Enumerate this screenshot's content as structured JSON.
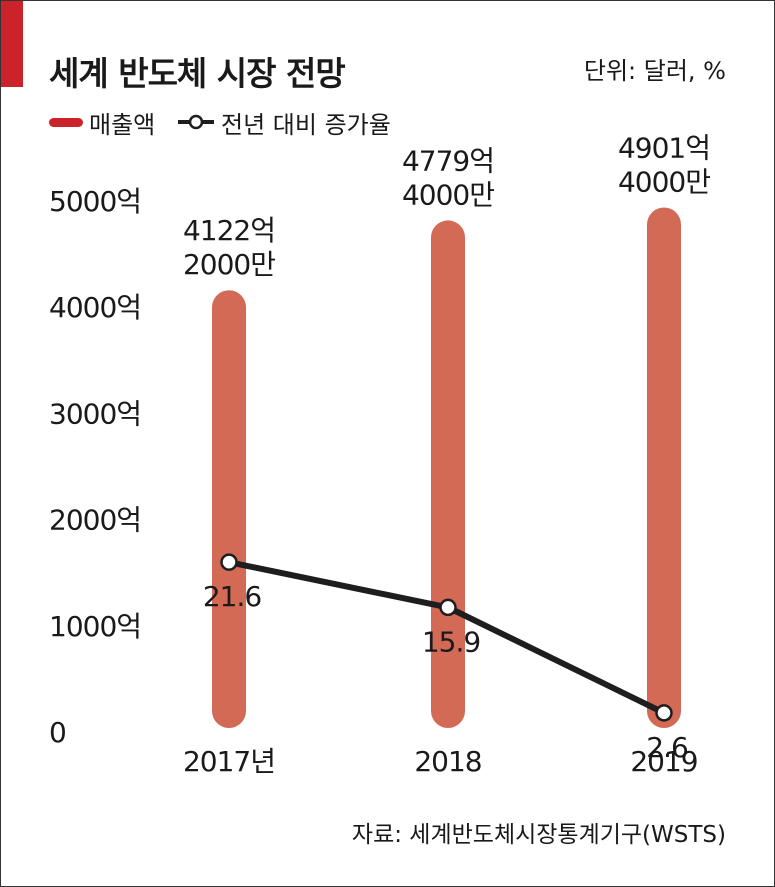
{
  "title": "세계 반도체 시장 전망",
  "unit": "단위: 달러, %",
  "legend": {
    "bar_label": "매출액",
    "line_label": "전년 대비 증가율"
  },
  "source": "자료:  세계반도체시장통계기구(WSTS)",
  "colors": {
    "accent": "#cc2229",
    "bar": "#d36a55",
    "line": "#1e1e1e",
    "text": "#1a1a1a"
  },
  "chart_data": {
    "type": "bar",
    "categories": [
      "2017년",
      "2018",
      "2019"
    ],
    "y_ticks": [
      "0",
      "1000억",
      "2000억",
      "3000억",
      "4000억",
      "5000억"
    ],
    "ylim": [
      0,
      5000
    ],
    "series": [
      {
        "name": "매출액",
        "type": "bar",
        "values": [
          4122.2,
          4779.4,
          4901.4
        ],
        "labels": [
          [
            "4122억",
            "2000만"
          ],
          [
            "4779억",
            "4000만"
          ],
          [
            "4901억",
            "4000만"
          ]
        ]
      },
      {
        "name": "전년 대비 증가율",
        "type": "line",
        "values": [
          21.6,
          15.9,
          2.6
        ],
        "labels": [
          "21.6",
          "15.9",
          "2.6"
        ]
      }
    ],
    "grid": false
  }
}
